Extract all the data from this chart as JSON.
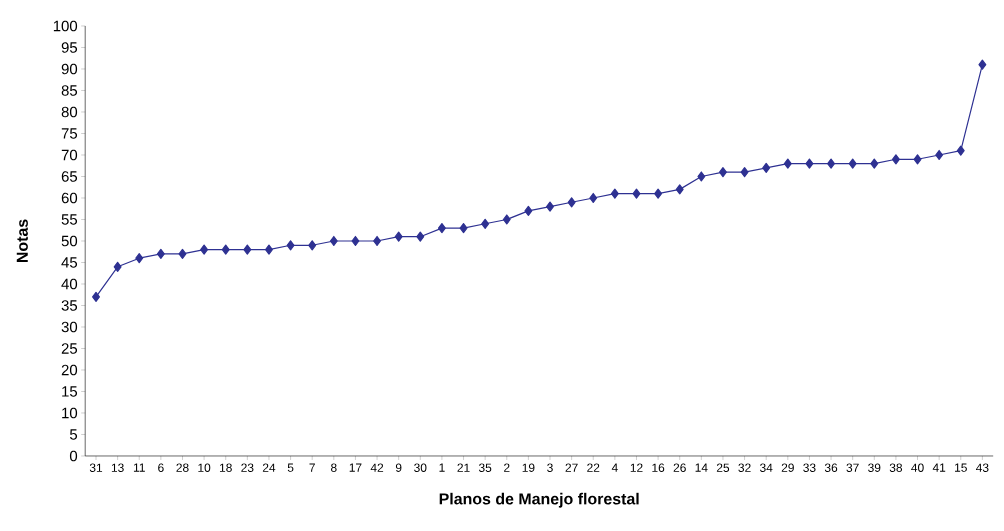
{
  "chart_data": {
    "type": "line",
    "xlabel": "Planos de Manejo florestal",
    "ylabel": "Notas",
    "categories": [
      "31",
      "13",
      "11",
      "6",
      "28",
      "10",
      "18",
      "23",
      "24",
      "5",
      "7",
      "8",
      "17",
      "42",
      "9",
      "30",
      "1",
      "21",
      "35",
      "2",
      "19",
      "3",
      "27",
      "22",
      "4",
      "12",
      "16",
      "26",
      "14",
      "25",
      "32",
      "34",
      "29",
      "33",
      "36",
      "37",
      "39",
      "38",
      "40",
      "41",
      "15",
      "43"
    ],
    "series": [
      {
        "color": "#2e3192",
        "values": [
          37,
          44,
          46,
          47,
          47,
          48,
          48,
          48,
          48,
          49,
          49,
          50,
          50,
          50,
          51,
          51,
          53,
          53,
          54,
          55,
          57,
          58,
          59,
          60,
          61,
          61,
          61,
          62,
          65,
          66,
          66,
          67,
          68,
          68,
          68,
          68,
          68,
          69,
          69,
          70,
          71,
          91
        ]
      }
    ],
    "ylim": [
      0,
      100
    ],
    "yticks": [
      0,
      5,
      10,
      15,
      20,
      25,
      30,
      35,
      40,
      45,
      50,
      55,
      60,
      65,
      70,
      75,
      80,
      85,
      90,
      95,
      100
    ],
    "marker": "diamond",
    "line_style": "solid",
    "grid": false
  }
}
